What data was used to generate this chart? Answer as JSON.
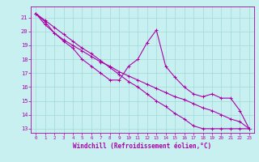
{
  "xlabel": "Windchill (Refroidissement éolien,°C)",
  "background_color": "#c8f0f0",
  "grid_color": "#a0d8d8",
  "line_color": "#aa00aa",
  "xlim": [
    -0.5,
    23.5
  ],
  "ylim": [
    12.7,
    21.8
  ],
  "xticks": [
    0,
    1,
    2,
    3,
    4,
    5,
    6,
    7,
    8,
    9,
    10,
    11,
    12,
    13,
    14,
    15,
    16,
    17,
    18,
    19,
    20,
    21,
    22,
    23
  ],
  "yticks": [
    13,
    14,
    15,
    16,
    17,
    18,
    19,
    20,
    21
  ],
  "line1_x": [
    0,
    1,
    2,
    3,
    4,
    5,
    6,
    7,
    8,
    9,
    10,
    11,
    12,
    13,
    14,
    15,
    16,
    17,
    18,
    19,
    20,
    21,
    22,
    23
  ],
  "line1_y": [
    21.3,
    20.7,
    19.9,
    19.3,
    18.8,
    18.0,
    17.5,
    17.0,
    16.5,
    16.5,
    17.5,
    18.0,
    19.2,
    20.1,
    17.5,
    16.7,
    16.0,
    15.5,
    15.3,
    15.5,
    15.2,
    15.2,
    14.3,
    13.0
  ],
  "line2_x": [
    0,
    1,
    2,
    3,
    4,
    5,
    6,
    7,
    8,
    9,
    10,
    11,
    12,
    13,
    14,
    15,
    16,
    17,
    18,
    19,
    20,
    21,
    22,
    23
  ],
  "line2_y": [
    21.3,
    20.8,
    20.3,
    19.8,
    19.3,
    18.8,
    18.4,
    17.9,
    17.4,
    16.9,
    16.4,
    16.0,
    15.5,
    15.0,
    14.6,
    14.1,
    13.7,
    13.2,
    13.0,
    13.0,
    13.0,
    13.0,
    13.0,
    13.0
  ],
  "line3_x": [
    0,
    1,
    2,
    3,
    4,
    5,
    6,
    7,
    8,
    9,
    10,
    11,
    12,
    13,
    14,
    15,
    16,
    17,
    18,
    19,
    20,
    21,
    22,
    23
  ],
  "line3_y": [
    21.3,
    20.5,
    19.9,
    19.4,
    19.0,
    18.6,
    18.2,
    17.8,
    17.5,
    17.1,
    16.8,
    16.5,
    16.2,
    15.9,
    15.6,
    15.3,
    15.1,
    14.8,
    14.5,
    14.3,
    14.0,
    13.7,
    13.5,
    13.0
  ]
}
